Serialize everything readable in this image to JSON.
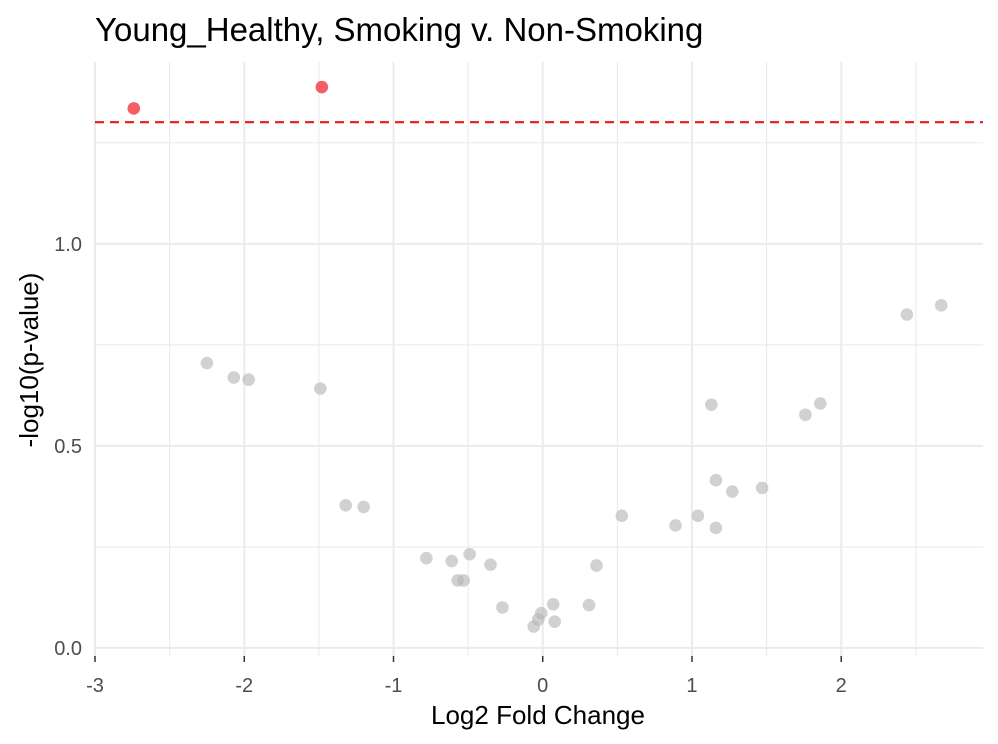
{
  "chart_data": {
    "type": "scatter",
    "title": "Young_Healthy, Smoking v. Non-Smoking",
    "xlabel": "Log2 Fold Change",
    "ylabel": "-log10(p-value)",
    "xlim": [
      -3.0,
      2.95
    ],
    "ylim": [
      -0.02,
      1.45
    ],
    "x_ticks": [
      -3,
      -2,
      -1,
      0,
      1,
      2
    ],
    "x_tick_labels": [
      "-3",
      "-2",
      "-1",
      "0",
      "1",
      "2"
    ],
    "y_ticks": [
      0.0,
      0.5,
      1.0
    ],
    "y_tick_labels": [
      "0.0",
      "0.5",
      "1.0"
    ],
    "grid": true,
    "threshold": {
      "y": 1.301,
      "color": "#e41a1c",
      "style": "dashed"
    },
    "colors": {
      "significant": "#f0373c",
      "not_significant": "#b3b3b3",
      "grid": "#ebebeb"
    },
    "series": [
      {
        "significant": true,
        "x": [
          -2.74,
          -1.48
        ],
        "y": [
          1.335,
          1.388
        ]
      },
      {
        "significant": false,
        "x": [
          -2.25,
          -2.07,
          -1.97,
          -1.49,
          -1.32,
          -1.2,
          -0.78,
          -0.61,
          -0.57,
          -0.53,
          -0.49,
          -0.35,
          -0.27,
          -0.06,
          -0.03,
          -0.01,
          0.07,
          0.08,
          0.31,
          0.36,
          0.53,
          0.89,
          1.04,
          1.13,
          1.16,
          1.16,
          1.27,
          1.47,
          1.76,
          1.86,
          2.44,
          2.67
        ],
        "y": [
          0.705,
          0.669,
          0.664,
          0.642,
          0.353,
          0.349,
          0.222,
          0.215,
          0.167,
          0.167,
          0.232,
          0.206,
          0.1,
          0.053,
          0.07,
          0.086,
          0.108,
          0.065,
          0.106,
          0.204,
          0.327,
          0.303,
          0.327,
          0.602,
          0.415,
          0.297,
          0.387,
          0.396,
          0.577,
          0.605,
          0.825,
          0.848
        ]
      }
    ]
  }
}
